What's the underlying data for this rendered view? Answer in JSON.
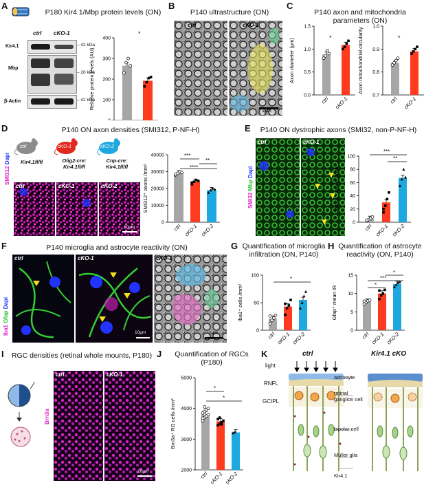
{
  "colors": {
    "ctrl": "#a6a6a6",
    "cko1": "#ff3b1f",
    "cko2": "#1ea8e0",
    "magenta": "#e020c8",
    "green": "#2fc02f",
    "blue": "#2233ff"
  },
  "panelA": {
    "letter": "A",
    "title": "P180 Kir4.1/Mbp protein levels (ON)",
    "lanes": [
      "ctrl",
      "cKO-1"
    ],
    "bands": [
      "Kir4.1",
      "Mbp",
      "β-Actin"
    ],
    "markers": [
      "– 42 kDa",
      "– 20 kDa",
      "– 42 kDa"
    ],
    "sig": "*",
    "chart_data": {
      "type": "bar",
      "categories": [
        "ctrl",
        "cKO-1"
      ],
      "values": [
        265,
        192
      ],
      "ylim": [
        0,
        400
      ],
      "yticks": [
        0,
        100,
        200,
        300,
        400
      ],
      "ylabel": "Relative protein levels (AU)",
      "points": [
        [
          230,
          280,
          300,
          265
        ],
        [
          165,
          185,
          205,
          210
        ]
      ]
    }
  },
  "panelB": {
    "letter": "B",
    "title": "P140 ultrastructure (ON)",
    "labels": [
      "ctrl",
      "cKO-1"
    ],
    "scale": "1μm"
  },
  "panelC": {
    "letter": "C",
    "title": "P140 axon and mitochondria parameters (ON)",
    "sig": "*",
    "chart_data": [
      {
        "type": "bar",
        "categories": [
          "ctrl",
          "cKO-1"
        ],
        "values": [
          0.88,
          1.09
        ],
        "ylim": [
          0,
          1.5
        ],
        "yticks": [
          "0.0",
          "0.5",
          "1.0",
          "1.5"
        ],
        "ylabel": "Axon diameter (μm)",
        "points": [
          [
            0.8,
            0.85,
            0.97,
            0.9
          ],
          [
            1.0,
            1.05,
            1.12,
            1.18
          ]
        ]
      },
      {
        "type": "bar",
        "categories": [
          "ctrl",
          "cKO-1"
        ],
        "values": [
          0.84,
          0.89
        ],
        "ylim": [
          0.7,
          1.0
        ],
        "yticks": [
          "0.7",
          "0.8",
          "0.9",
          "1.0"
        ],
        "ylabel": "Axon mitochondrial circularity",
        "points": [
          [
            0.83,
            0.84,
            0.85,
            0.86
          ],
          [
            0.88,
            0.89,
            0.9,
            0.91
          ]
        ]
      }
    ]
  },
  "panelD": {
    "letter": "D",
    "title": "P140 ON axon densities (SMI312, P-NF-H)",
    "mice": [
      {
        "name": "ctrl",
        "genotype": "Kir4.1fl/fl"
      },
      {
        "name": "cKO-1",
        "genotype": "Olig2-cre: Kir4.1fl/fl"
      },
      {
        "name": "cKO-2",
        "genotype": "Cnp-cre: Kir4.1fl/fl"
      }
    ],
    "stain": [
      "SMI312",
      "Dapi"
    ],
    "scale": "10μm",
    "sig": [
      "***",
      "****",
      "**"
    ],
    "chart_data": {
      "type": "bar",
      "categories": [
        "ctrl",
        "cKO-1",
        "cKO-2"
      ],
      "values": [
        29000,
        24000,
        19000
      ],
      "ylim": [
        0,
        40000
      ],
      "yticks": [
        "0",
        "10000",
        "20000",
        "30000",
        "40000"
      ],
      "ylabel": "SMI312⁺ axons /mm²",
      "points": [
        [
          28000,
          29000,
          30000,
          29500,
          28500
        ],
        [
          22500,
          24000,
          25000,
          24500,
          23500
        ],
        [
          17500,
          19000,
          20000,
          19500
        ]
      ]
    }
  },
  "panelE": {
    "letter": "E",
    "title": "P140 ON dystrophic axons (SMI32, non-P-NF-H)",
    "stain": [
      "SMI32",
      "Mbp",
      "Dapi"
    ],
    "labels": [
      "ctrl",
      "cKO-1"
    ],
    "sig": [
      "***",
      "**"
    ],
    "chart_data": {
      "type": "bar",
      "categories": [
        "ctrl",
        "cKO-1",
        "cKO-2"
      ],
      "values": [
        5,
        30,
        67
      ],
      "ylim": [
        0,
        100
      ],
      "yticks": [
        "0",
        "20",
        "40",
        "60",
        "80",
        "100"
      ],
      "ylabel": "SMI32⁺ axons /mm²",
      "points": [
        [
          2,
          4,
          6,
          8,
          3
        ],
        [
          15,
          25,
          35,
          45,
          20
        ],
        [
          55,
          65,
          80,
          68
        ]
      ]
    }
  },
  "panelF": {
    "letter": "F",
    "title": "P140 microglia and astrocyte reactivity (ON)",
    "stain": [
      "Iba1",
      "Gfap",
      "Dapi"
    ],
    "labels": [
      "ctrl",
      "cKO-1",
      "cKO-1"
    ],
    "scales": [
      "10μm",
      "1μm"
    ]
  },
  "panelG": {
    "letter": "G",
    "title": "Quantification of microglia infiltration (ON, P140)",
    "sig": "*",
    "chart_data": {
      "type": "bar",
      "categories": [
        "ctrl",
        "cKO-1",
        "cKO-2"
      ],
      "values": [
        21,
        43,
        55
      ],
      "ylim": [
        0,
        100
      ],
      "yticks": [
        "0",
        "50",
        "100"
      ],
      "ylabel": "Iba1⁺ cells /mm²",
      "points": [
        [
          12,
          18,
          22,
          27,
          26
        ],
        [
          28,
          40,
          45,
          55,
          48
        ],
        [
          40,
          50,
          62,
          70
        ]
      ]
    }
  },
  "panelH": {
    "letter": "H",
    "title": "Quantification of astrocyte reactivity (ON, P140)",
    "sig": [
      "*",
      "***",
      "*"
    ],
    "chart_data": {
      "type": "bar",
      "categories": [
        "ctrl",
        "cKO-1",
        "cKO-2"
      ],
      "values": [
        7.8,
        10,
        12.6
      ],
      "ylim": [
        0,
        15
      ],
      "yticks": [
        "0",
        "5",
        "10",
        "15"
      ],
      "ylabel": "Gfap⁺ mean IR",
      "points": [
        [
          7.2,
          7.6,
          8.0,
          8.2,
          7.9
        ],
        [
          8.5,
          9.5,
          10.0,
          11.0,
          10.8
        ],
        [
          11.8,
          12.4,
          13.0,
          13.2
        ]
      ]
    }
  },
  "panelI": {
    "letter": "I",
    "title": "RGC densities (retinal whole mounts, P180)",
    "stain": "Brn3a",
    "labels": [
      "ctrl",
      "cKO-1"
    ],
    "scale": "20μm"
  },
  "panelJ": {
    "letter": "J",
    "title": "Quantification of RGCs (P180)",
    "sig": [
      "*",
      "*"
    ],
    "chart_data": {
      "type": "bar",
      "categories": [
        "ctrl",
        "cKO-1",
        "cKO-2"
      ],
      "values": [
        3800,
        3580,
        3220
      ],
      "ylim": [
        2000,
        5000
      ],
      "yticks": [
        "2000",
        "3000",
        "4000",
        "5000"
      ],
      "ylabel": "Brn3a⁺ RG cells /mm²",
      "points": [
        [
          3600,
          3700,
          3750,
          3800,
          3850,
          3900,
          3950,
          4000,
          3680,
          4050
        ],
        [
          3450,
          3500,
          3550,
          3600,
          3650,
          3700,
          3480
        ],
        [
          3200,
          3230
        ]
      ]
    }
  },
  "panelK": {
    "letter": "K",
    "titles": [
      "ctrl",
      "Kir4.1 cKO"
    ],
    "left_labels": [
      "light",
      "RNFL",
      "GCIPL"
    ],
    "right_labels": [
      "astrocyte",
      "retinal ganglion cell",
      "bipolar cell",
      "Müller glia",
      "Kir4.1"
    ]
  }
}
